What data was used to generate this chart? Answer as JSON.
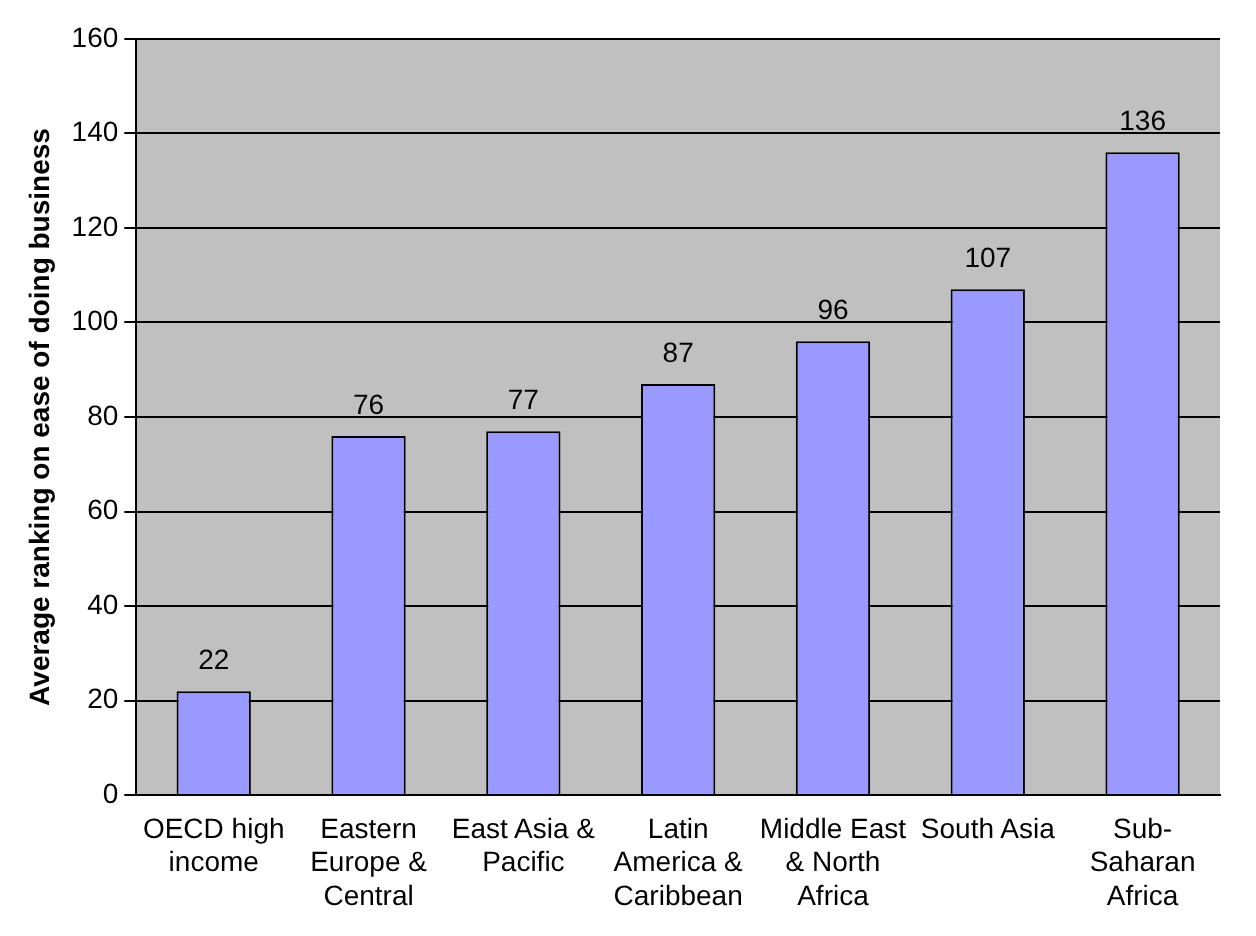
{
  "chart_data": {
    "type": "bar",
    "ylabel": "Average ranking on ease of doing business",
    "categories": [
      "OECD high income",
      "Eastern Europe & Central",
      "East Asia & Pacific",
      "Latin America & Caribbean",
      "Middle East & North Africa",
      "South Asia",
      "Sub-Saharan Africa"
    ],
    "values": [
      22,
      76,
      77,
      87,
      96,
      107,
      136
    ],
    "color": "#9999ff",
    "ylim": [
      0,
      160
    ],
    "yticks": [
      0,
      20,
      40,
      60,
      80,
      100,
      120,
      140,
      160
    ],
    "grid": "y",
    "data_labels": true,
    "legend": false
  }
}
